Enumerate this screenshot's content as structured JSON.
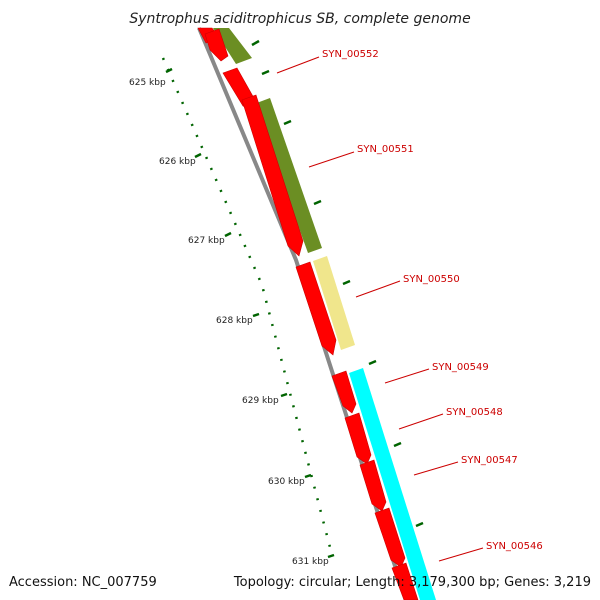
{
  "title": "Syntrophus aciditrophicus SB, complete genome",
  "footer": {
    "accession": "Accession: NC_007759",
    "summary": "Topology: circular; Length: 3,179,300 bp; Genes: 3,219"
  },
  "ruler_labels": [
    "625 kbp",
    "626 kbp",
    "627 kbp",
    "628 kbp",
    "629 kbp",
    "630 kbp",
    "631 kbp"
  ],
  "gene_labels": [
    "SYN_00552",
    "SYN_00551",
    "SYN_00550",
    "SYN_00549",
    "SYN_00548",
    "SYN_00547",
    "SYN_00546"
  ],
  "colors": {
    "cds": "#ff0000",
    "backbone": "#888888",
    "olive_feature": "#6b8e23",
    "khaki_feature": "#f0e68c",
    "cyan_feature": "#00ffff",
    "tick": "#006400",
    "label": "#cc0000"
  }
}
